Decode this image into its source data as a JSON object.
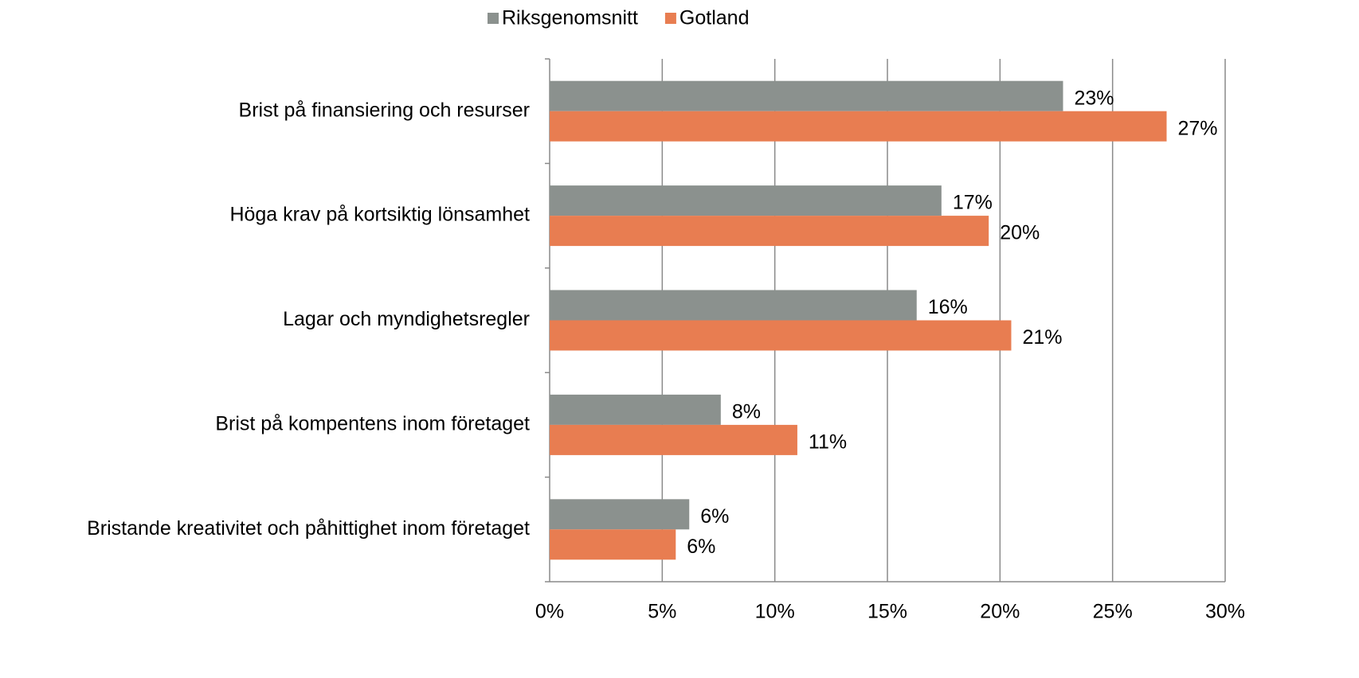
{
  "chart_data": {
    "type": "barh",
    "categories": [
      "Brist på finansiering och resurser",
      "Höga krav på kortsiktig lönsamhet",
      "Lagar och myndighetsregler",
      "Brist på kompentens inom företaget",
      "Bristande kreativitet och påhittighet inom företaget"
    ],
    "series": [
      {
        "name": "Riksgenomsnitt",
        "color": "#8b918e",
        "values": [
          22.8,
          17.4,
          16.3,
          7.6,
          6.2
        ],
        "value_labels": [
          "23%",
          "17%",
          "16%",
          "8%",
          "6%"
        ]
      },
      {
        "name": "Gotland",
        "color": "#e87d51",
        "values": [
          27.4,
          19.5,
          20.5,
          11.0,
          5.6
        ],
        "value_labels": [
          "27%",
          "20%",
          "21%",
          "11%",
          "6%"
        ]
      }
    ],
    "xlim": [
      0,
      30
    ],
    "xticks": [
      {
        "value": 0,
        "label": "0%"
      },
      {
        "value": 5,
        "label": "5%"
      },
      {
        "value": 10,
        "label": "10%"
      },
      {
        "value": 15,
        "label": "15%"
      },
      {
        "value": 20,
        "label": "20%"
      },
      {
        "value": 25,
        "label": "25%"
      },
      {
        "value": 30,
        "label": "30%"
      }
    ],
    "grid": true,
    "legend": "top"
  }
}
